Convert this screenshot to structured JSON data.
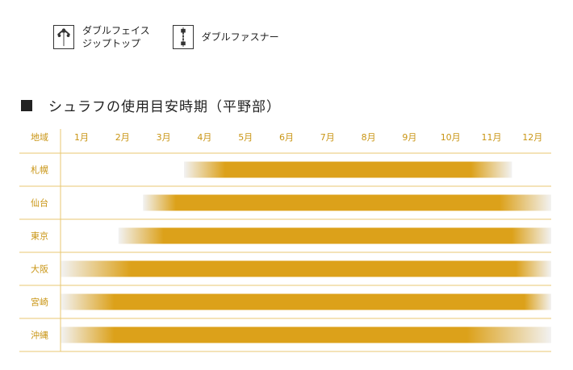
{
  "legend": [
    {
      "label": "ダブルフェイス\nジップトップ",
      "icon": "double-face-zip-icon"
    },
    {
      "label": "ダブルファスナー",
      "icon": "double-zipper-icon"
    }
  ],
  "title": "シュラフの使用目安時期（平野部）",
  "colors": {
    "accent": "#DCA11A",
    "line": "#E8C770",
    "header_text": "#C99514",
    "fade": "#F2F2F2"
  },
  "chart_data": {
    "type": "bar",
    "orientation": "horizontal-range",
    "header_label": "地域",
    "months": [
      "1月",
      "2月",
      "3月",
      "4月",
      "5月",
      "6月",
      "7月",
      "8月",
      "9月",
      "10月",
      "11月",
      "12月"
    ],
    "rows": [
      {
        "region": "札幌",
        "start": 3.5,
        "solid_start": 4.5,
        "solid_end": 10.5,
        "end": 11.5
      },
      {
        "region": "仙台",
        "start": 2.5,
        "solid_start": 3.3,
        "solid_end": 11.2,
        "end": 12.5
      },
      {
        "region": "東京",
        "start": 1.9,
        "solid_start": 3.0,
        "solid_end": 11.5,
        "end": 12.5
      },
      {
        "region": "大阪",
        "start": 0.5,
        "solid_start": 2.2,
        "solid_end": 11.6,
        "end": 12.5
      },
      {
        "region": "宮崎",
        "start": 0.5,
        "solid_start": 1.8,
        "solid_end": 11.8,
        "end": 12.5
      },
      {
        "region": "沖縄",
        "start": 0.5,
        "solid_start": 1.8,
        "solid_end": 10.4,
        "end": 12.5
      }
    ]
  }
}
